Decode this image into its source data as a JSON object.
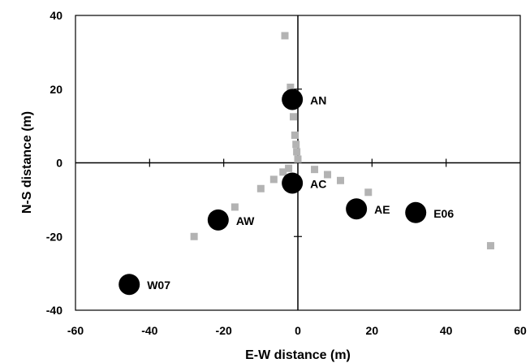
{
  "chart_data": {
    "type": "scatter",
    "xlabel": "E-W distance (m)",
    "ylabel": "N-S distance (m)",
    "xlim": [
      -60,
      60
    ],
    "ylim": [
      -40,
      40
    ],
    "x_ticks": [
      -60,
      -40,
      -20,
      0,
      20,
      40,
      60
    ],
    "y_ticks": [
      -40,
      -20,
      0,
      20,
      40
    ],
    "grid": false,
    "colors": {
      "stations": "#000000",
      "sensors": "#b3b3b3"
    },
    "series": [
      {
        "marker": "gray-square",
        "points": [
          {
            "x": -3.5,
            "y": 34.5
          },
          {
            "x": -2,
            "y": 20.5
          },
          {
            "x": -1.2,
            "y": 12.5
          },
          {
            "x": -0.8,
            "y": 7.5
          },
          {
            "x": -0.5,
            "y": 5
          },
          {
            "x": -0.3,
            "y": 3
          },
          {
            "x": 0,
            "y": 1
          },
          {
            "x": -2.5,
            "y": -1.5
          },
          {
            "x": -4,
            "y": -2.5
          },
          {
            "x": -6.5,
            "y": -4.5
          },
          {
            "x": -10,
            "y": -7
          },
          {
            "x": -17,
            "y": -12
          },
          {
            "x": -28,
            "y": -20
          },
          {
            "x": 4.5,
            "y": -1.8
          },
          {
            "x": 8,
            "y": -3.2
          },
          {
            "x": 11.5,
            "y": -4.8
          },
          {
            "x": 19,
            "y": -8
          },
          {
            "x": 52,
            "y": -22.5
          }
        ]
      },
      {
        "marker": "black-circle",
        "points": [
          {
            "x": -1.5,
            "y": 17.2,
            "label": "AN"
          },
          {
            "x": -1.5,
            "y": -5.5,
            "label": "AC"
          },
          {
            "x": -21.5,
            "y": -15.5,
            "label": "AW"
          },
          {
            "x": 15.8,
            "y": -12.5,
            "label": "AE"
          },
          {
            "x": 31.8,
            "y": -13.5,
            "label": "E06"
          },
          {
            "x": -45.5,
            "y": -33,
            "label": "W07"
          }
        ]
      }
    ]
  }
}
